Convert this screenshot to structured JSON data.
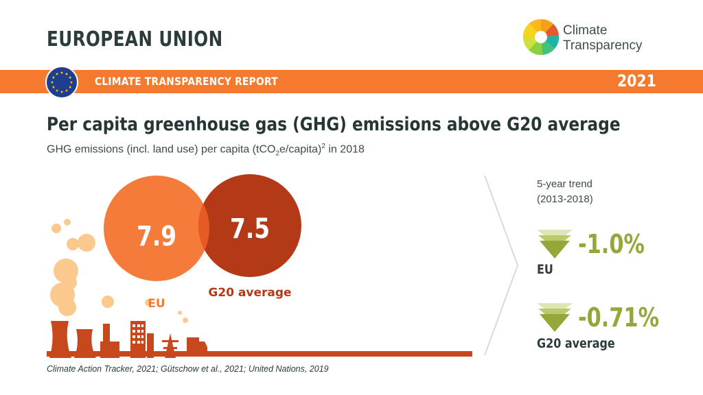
{
  "header": {
    "country": "EUROPEAN UNION",
    "logo_line1": "Climate",
    "logo_line2": "Transparency"
  },
  "band": {
    "label": "CLIMATE TRANSPARENCY REPORT",
    "year": "2021"
  },
  "title": "Per capita greenhouse gas (GHG) emissions above G20 average",
  "subtitle": {
    "prefix": "GHG emissions (incl. land use) per capita (tCO",
    "sub": "2",
    "mid": "e/capita)",
    "sup": "2",
    "suffix": " in 2018"
  },
  "chart_data": {
    "type": "bubble",
    "title": "Per capita greenhouse gas (GHG) emissions above G20 average",
    "subtitle": "GHG emissions (incl. land use) per capita (tCO2e/capita)2 in 2018",
    "series": [
      {
        "name": "EU",
        "value": 7.9,
        "value_label": "7.9",
        "color": "#f47b3a"
      },
      {
        "name": "G20 average",
        "value": 7.5,
        "value_label": "7.5",
        "color": "#b43a17"
      }
    ]
  },
  "trend": {
    "heading_line1": "5-year trend",
    "heading_line2": "(2013-2018)",
    "items": [
      {
        "label": "EU",
        "value": "-1.0%"
      },
      {
        "label": "G20 average",
        "value": "-0.71%"
      }
    ],
    "color": "#94a83a"
  },
  "colors": {
    "orange": "#f47b2e",
    "eu_bubble": "#f47b3a",
    "g20_bubble": "#b43a17",
    "trend_green": "#94a83a",
    "smoke": "#fbc98e",
    "industry": "#c8481e",
    "eu_blue": "#1f3e8f",
    "eu_star": "#ffcc00"
  },
  "source": "Climate Action Tracker, 2021; Gütschow et al., 2021; United Nations, 2019"
}
